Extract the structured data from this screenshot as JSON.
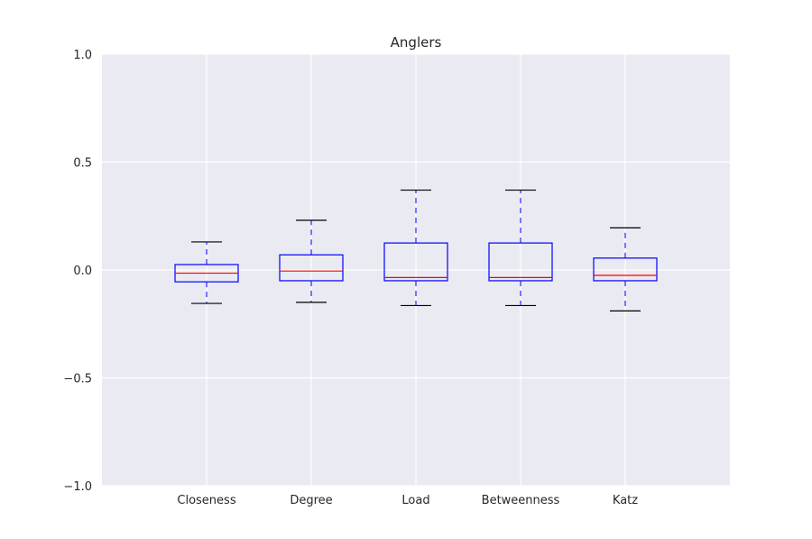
{
  "chart_data": {
    "type": "boxplot",
    "title": "Anglers",
    "xlabel": "",
    "ylabel": "",
    "ylim": [
      -1.0,
      1.0
    ],
    "yticks": [
      1.0,
      0.5,
      0.0,
      -0.5,
      -1.0
    ],
    "ytick_labels": [
      "1.0",
      "0.5",
      "0.0",
      "−0.5",
      "−1.0"
    ],
    "grid": true,
    "categories": [
      "Closeness",
      "Degree",
      "Load",
      "Betweenness",
      "Katz"
    ],
    "boxes": [
      {
        "name": "Closeness",
        "whisker_low": -0.155,
        "q1": -0.055,
        "median": -0.015,
        "q3": 0.025,
        "whisker_high": 0.13
      },
      {
        "name": "Degree",
        "whisker_low": -0.15,
        "q1": -0.05,
        "median": -0.005,
        "q3": 0.07,
        "whisker_high": 0.23
      },
      {
        "name": "Load",
        "whisker_low": -0.165,
        "q1": -0.05,
        "median": -0.035,
        "q3": 0.125,
        "whisker_high": 0.37
      },
      {
        "name": "Betweenness",
        "whisker_low": -0.165,
        "q1": -0.05,
        "median": -0.035,
        "q3": 0.125,
        "whisker_high": 0.37
      },
      {
        "name": "Katz",
        "whisker_low": -0.19,
        "q1": -0.05,
        "median": -0.025,
        "q3": 0.055,
        "whisker_high": 0.195
      }
    ],
    "colors": {
      "background": "#EAEAF2",
      "grid": "#FFFFFF",
      "box": "#0000FF",
      "whisker": "#0000FF",
      "cap": "#000000",
      "median": "#FF0000",
      "text": "#262626"
    }
  }
}
